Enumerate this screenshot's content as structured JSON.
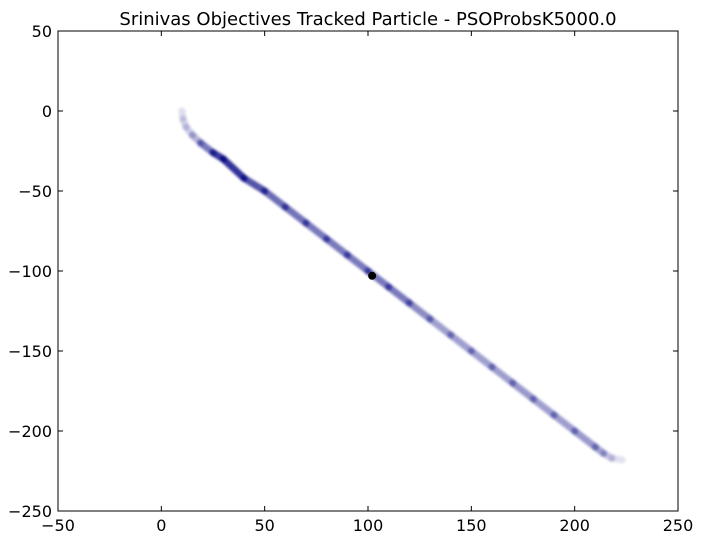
{
  "chart_data": {
    "type": "scatter",
    "title": "Srinivas Objectives Tracked Particle - PSOProbsK5000.0",
    "xlabel": "",
    "ylabel": "",
    "xlim": [
      -50,
      250
    ],
    "ylim": [
      -250,
      50
    ],
    "xticks": [
      -50,
      0,
      50,
      100,
      150,
      200,
      250
    ],
    "yticks": [
      -250,
      -200,
      -150,
      -100,
      -50,
      0,
      50
    ],
    "xtick_labels": [
      "−50",
      "0",
      "50",
      "100",
      "150",
      "200",
      "250"
    ],
    "ytick_labels": [
      "−250",
      "−200",
      "−150",
      "−100",
      "−50",
      "0",
      "50"
    ],
    "grid": false,
    "legend": "none",
    "series": [
      {
        "style": "trajectory",
        "color": "#00007f",
        "points": [
          {
            "x": 10,
            "y": 0,
            "alpha": 0.12
          },
          {
            "x": 10.5,
            "y": -5,
            "alpha": 0.14
          },
          {
            "x": 12,
            "y": -10,
            "alpha": 0.16
          },
          {
            "x": 15,
            "y": -15,
            "alpha": 0.22
          },
          {
            "x": 19,
            "y": -20,
            "alpha": 0.35
          },
          {
            "x": 25,
            "y": -26,
            "alpha": 0.7
          },
          {
            "x": 30,
            "y": -30,
            "alpha": 0.85
          },
          {
            "x": 40,
            "y": -42,
            "alpha": 0.75
          },
          {
            "x": 50,
            "y": -50,
            "alpha": 0.6
          },
          {
            "x": 60,
            "y": -60,
            "alpha": 0.55
          },
          {
            "x": 70,
            "y": -70,
            "alpha": 0.55
          },
          {
            "x": 80,
            "y": -80,
            "alpha": 0.5
          },
          {
            "x": 90,
            "y": -90,
            "alpha": 0.55
          },
          {
            "x": 100,
            "y": -100,
            "alpha": 0.5
          },
          {
            "x": 110,
            "y": -110,
            "alpha": 0.55
          },
          {
            "x": 120,
            "y": -120,
            "alpha": 0.5
          },
          {
            "x": 130,
            "y": -130,
            "alpha": 0.4
          },
          {
            "x": 140,
            "y": -140,
            "alpha": 0.35
          },
          {
            "x": 150,
            "y": -150,
            "alpha": 0.4
          },
          {
            "x": 160,
            "y": -160,
            "alpha": 0.35
          },
          {
            "x": 170,
            "y": -170,
            "alpha": 0.4
          },
          {
            "x": 180,
            "y": -180,
            "alpha": 0.4
          },
          {
            "x": 190,
            "y": -190,
            "alpha": 0.35
          },
          {
            "x": 200,
            "y": -200,
            "alpha": 0.4
          },
          {
            "x": 210,
            "y": -210,
            "alpha": 0.4
          },
          {
            "x": 214,
            "y": -214,
            "alpha": 0.3
          },
          {
            "x": 218,
            "y": -217,
            "alpha": 0.15
          },
          {
            "x": 223,
            "y": -218,
            "alpha": 0.08
          }
        ]
      }
    ],
    "tracked_point": {
      "x": 102,
      "y": -103,
      "color": "#000000"
    }
  }
}
